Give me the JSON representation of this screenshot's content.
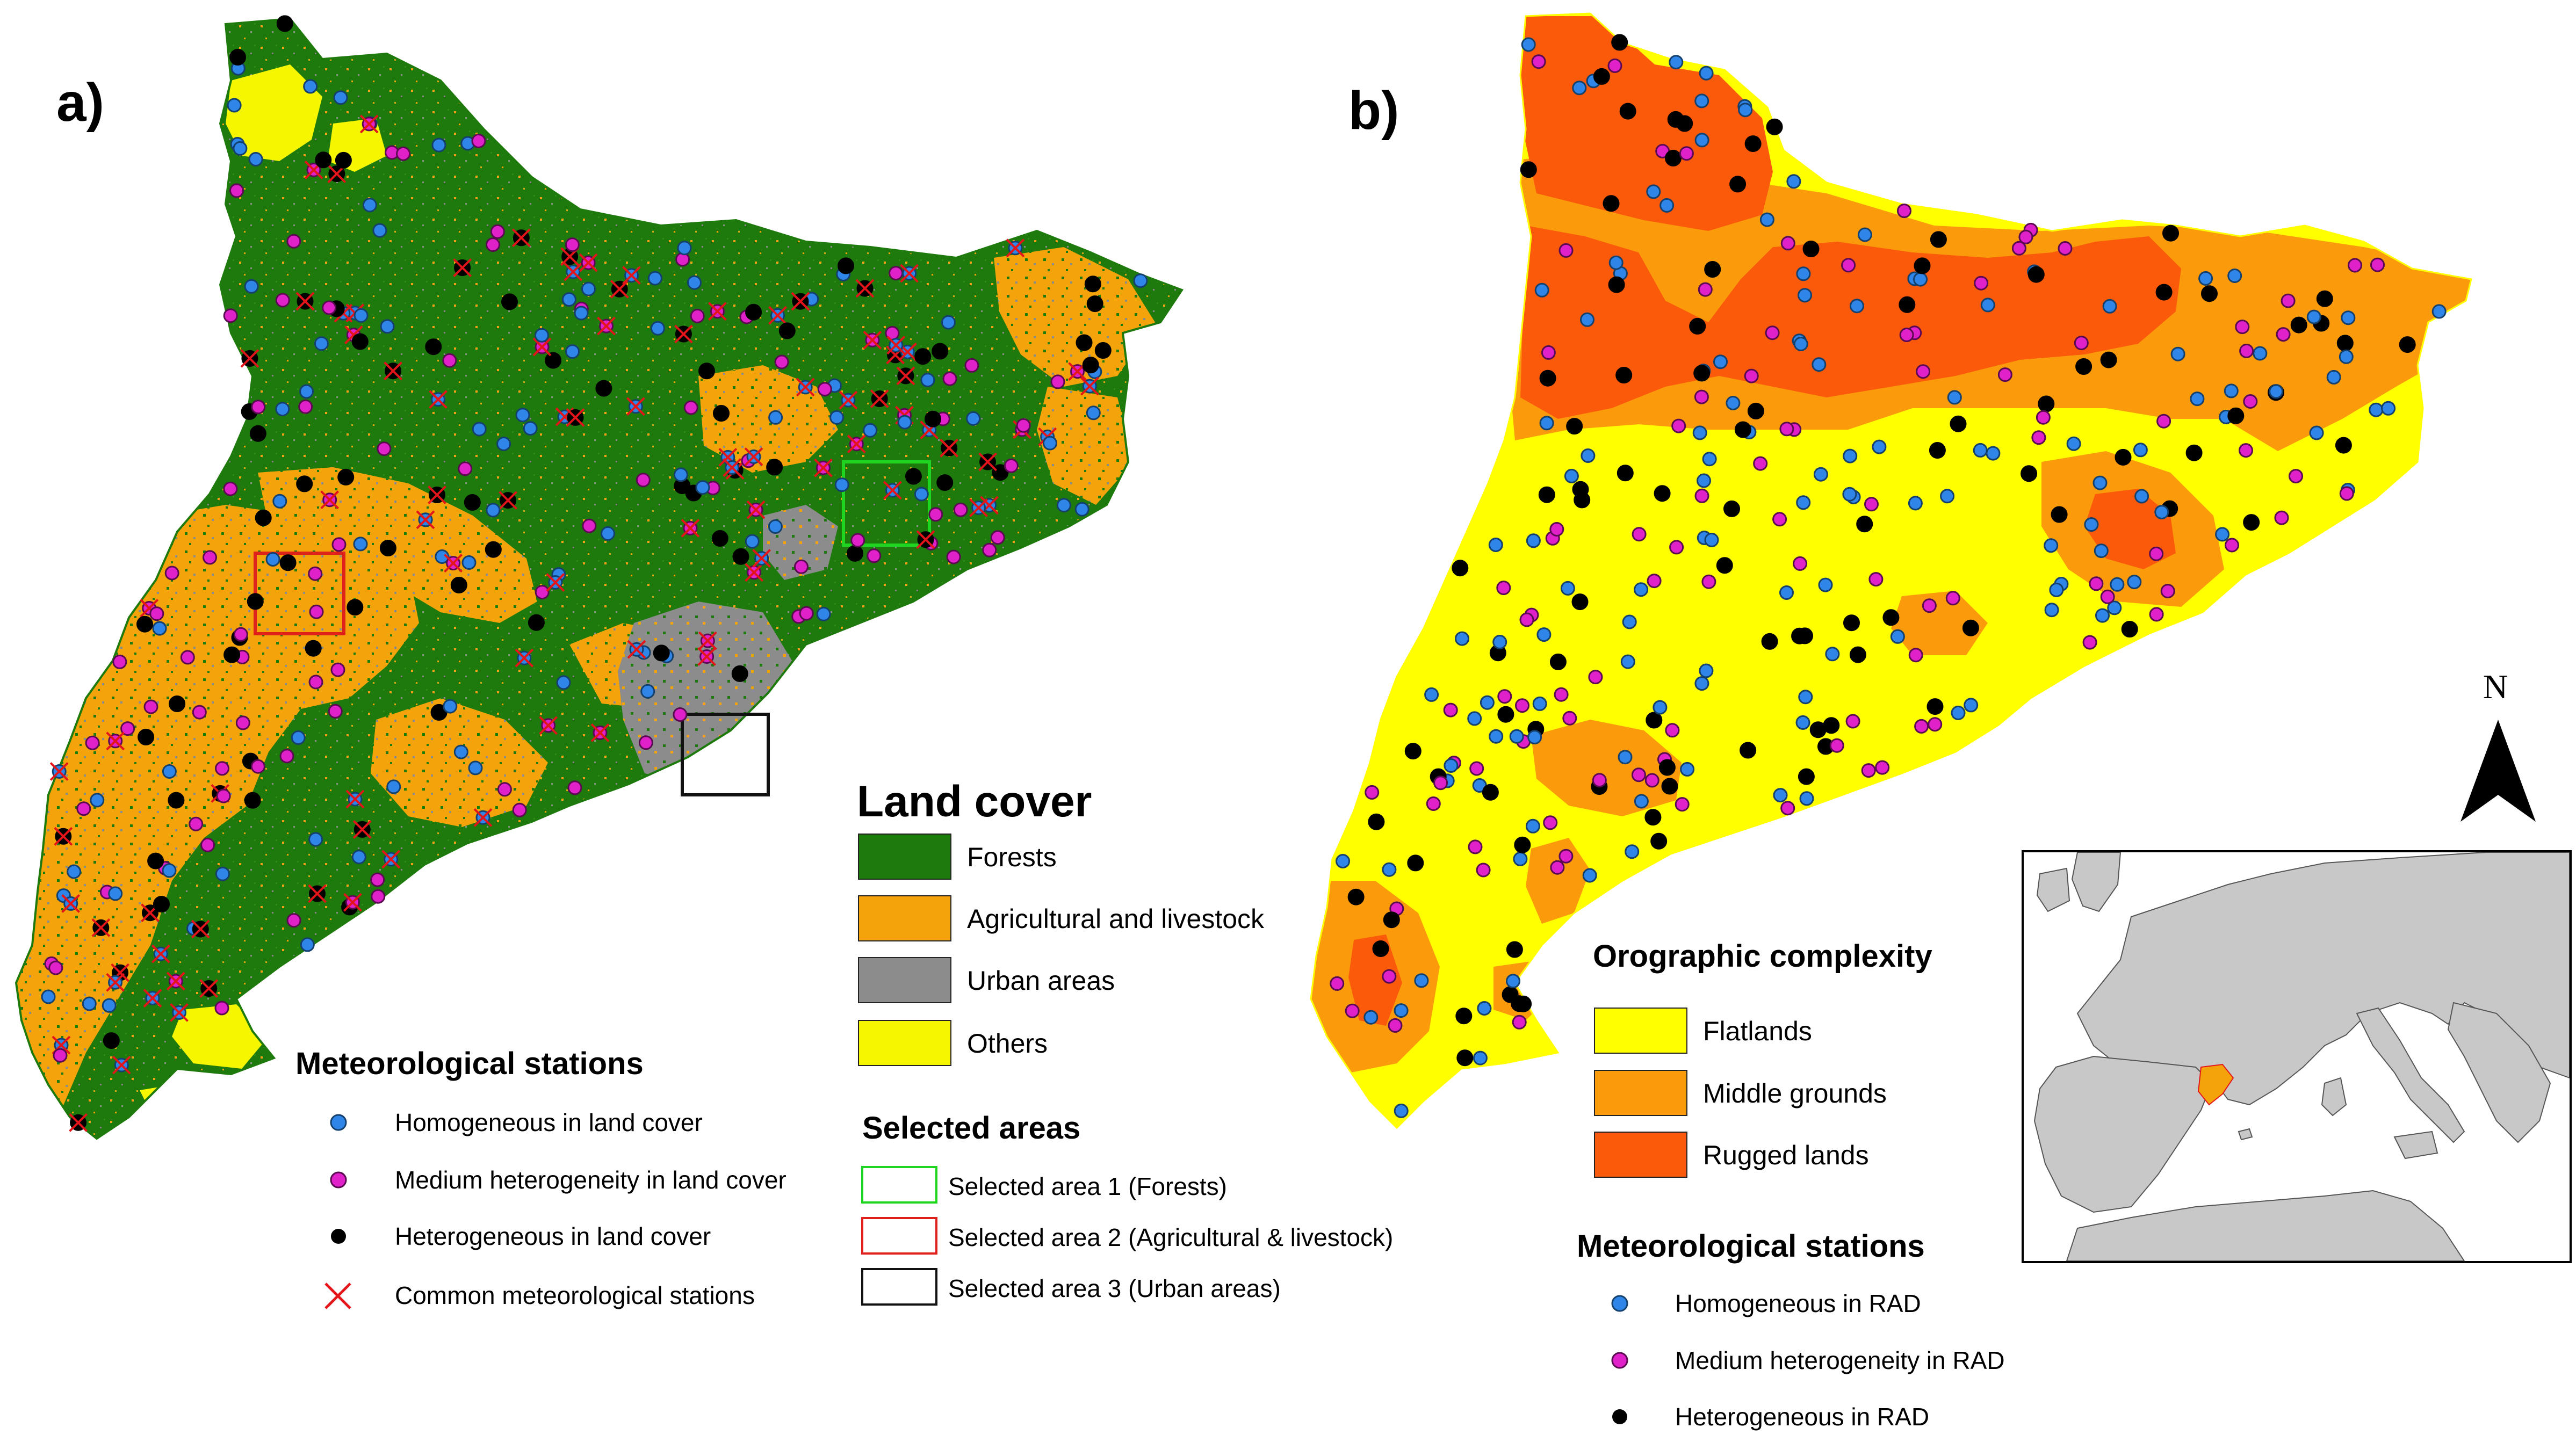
{
  "panels": {
    "a_label": "a)",
    "b_label": "b)"
  },
  "land_cover_legend": {
    "title": "Land cover",
    "items": [
      {
        "label": "Forests",
        "color": "#1e7a0c"
      },
      {
        "label": "Agricultural and livestock",
        "color": "#f5a30a"
      },
      {
        "label": "Urban areas",
        "color": "#8c8c8c"
      },
      {
        "label": "Others",
        "color": "#f6f600"
      }
    ]
  },
  "selected_areas_legend": {
    "title": "Selected areas",
    "items": [
      {
        "label": "Selected area 1 (Forests)",
        "color": "#1fd51f"
      },
      {
        "label": "Selected area 2 (Agricultural & livestock)",
        "color": "#e0201a"
      },
      {
        "label": "Selected area 3 (Urban areas)",
        "color": "#111111"
      }
    ]
  },
  "stations_legend_a": {
    "title": "Meteorological stations",
    "items": [
      {
        "label": "Homogeneous in land cover",
        "marker": "blue-dot",
        "color": "#2f86e8"
      },
      {
        "label": "Medium  heterogeneity in land cover",
        "marker": "magenta-dot",
        "color": "#e020c8"
      },
      {
        "label": "Heterogeneous in land cover",
        "marker": "black-dot",
        "color": "#000000"
      },
      {
        "label": "Common meteorological stations",
        "marker": "red-cross",
        "color": "#e4151a"
      }
    ]
  },
  "orography_legend": {
    "title": "Orographic complexity",
    "items": [
      {
        "label": "Flatlands",
        "color": "#ffff00"
      },
      {
        "label": "Middle grounds",
        "color": "#fb9b0c"
      },
      {
        "label": "Rugged lands",
        "color": "#fa5a0a"
      }
    ]
  },
  "stations_legend_b": {
    "title": "Meteorological stations",
    "items": [
      {
        "label": "Homogeneous in RAD",
        "marker": "blue-dot",
        "color": "#2f86e8"
      },
      {
        "label": "Medium  heterogeneity in RAD",
        "marker": "magenta-dot",
        "color": "#e020c8"
      },
      {
        "label": "Heterogeneous in RAD",
        "marker": "black-dot",
        "color": "#000000"
      }
    ]
  },
  "north_arrow": {
    "label": "N"
  },
  "inset": {
    "highlight_color": "#f5a30a",
    "land_color": "#c8c8c8",
    "sea_color": "#ffffff"
  }
}
